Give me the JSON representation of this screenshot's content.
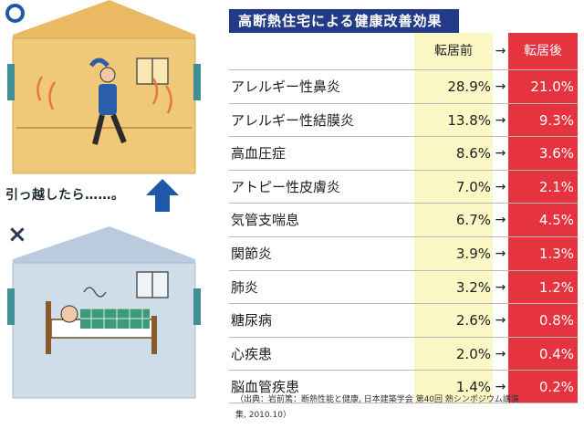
{
  "illustration": {
    "ok_mark_icon": "circle-icon",
    "ng_mark": "×",
    "caption": "引っ越したら……。",
    "arrow_icon": "arrow-up-icon",
    "colors": {
      "house_good": "#efc878",
      "house_bad": "#cfdde9",
      "arrow": "#1f5aa8"
    }
  },
  "table": {
    "title": "高断熱住宅による健康改善効果",
    "header_before": "転居前",
    "header_arrow": "→",
    "header_after": "転居後",
    "rows": [
      {
        "name": "アレルギー性鼻炎",
        "before": "28.9%",
        "arrow": "→",
        "after": "21.0%"
      },
      {
        "name": "アレルギー性結膜炎",
        "before": "13.8%",
        "arrow": "→",
        "after": "9.3%"
      },
      {
        "name": "高血圧症",
        "before": "8.6%",
        "arrow": "→",
        "after": "3.6%"
      },
      {
        "name": "アトピー性皮膚炎",
        "before": "7.0%",
        "arrow": "→",
        "after": "2.1%"
      },
      {
        "name": "気管支喘息",
        "before": "6.7%",
        "arrow": "→",
        "after": "4.5%"
      },
      {
        "name": "関節炎",
        "before": "3.9%",
        "arrow": "→",
        "after": "1.3%"
      },
      {
        "name": "肺炎",
        "before": "3.2%",
        "arrow": "→",
        "after": "1.2%"
      },
      {
        "name": "糖尿病",
        "before": "2.6%",
        "arrow": "→",
        "after": "0.8%"
      },
      {
        "name": "心疾患",
        "before": "2.0%",
        "arrow": "→",
        "after": "0.4%"
      },
      {
        "name": "脳血管疾患",
        "before": "1.4%",
        "arrow": "→",
        "after": "0.2%"
      }
    ],
    "colors": {
      "title_bg": "#233b86",
      "before_bg": "#fbf8c5",
      "after_bg": "#e5333f"
    }
  },
  "source": {
    "line1": "（出典：岩前篤：断熱性能と健康, 日本建築学会 第40回 熱シンポジウム講演",
    "line2": "集, 2010.10）"
  }
}
